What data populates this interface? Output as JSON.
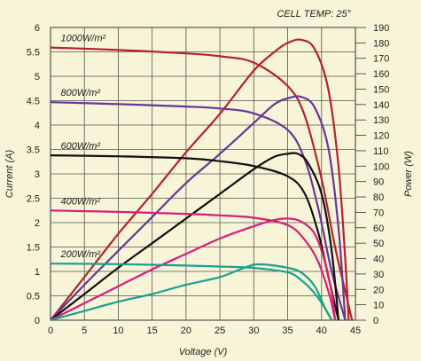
{
  "chart_data": {
    "type": "line",
    "annotation": "CELL TEMP: 25°",
    "xlabel": "Voltage (V)",
    "ylabel_left": "Current (A)",
    "ylabel_right": "Power (W)",
    "xlim": [
      0,
      45
    ],
    "ylim_left": [
      0,
      6
    ],
    "ylim_right": [
      0,
      190
    ],
    "x_ticks": [
      "0",
      "5",
      "10",
      "15",
      "20",
      "25",
      "30",
      "35",
      "40",
      "45"
    ],
    "y_left_ticks": [
      "0",
      "0.5",
      "1",
      "1.5",
      "2",
      "2.5",
      "3",
      "3.5",
      "4",
      "4.5",
      "5",
      "5.5",
      "6"
    ],
    "y_right_ticks": [
      "0",
      "10",
      "20",
      "30",
      "40",
      "50",
      "60",
      "70",
      "80",
      "90",
      "100",
      "110",
      "120",
      "130",
      "140",
      "150",
      "160",
      "170",
      "180",
      "190"
    ],
    "grid": true,
    "series": [
      {
        "name": "1000W/m²",
        "color": "#b5222a",
        "current": [
          [
            0,
            5.59
          ],
          [
            10,
            5.54
          ],
          [
            20,
            5.47
          ],
          [
            25,
            5.41
          ],
          [
            30,
            5.28
          ],
          [
            35,
            4.8
          ],
          [
            37.5,
            4.2
          ],
          [
            40,
            2.9
          ],
          [
            42,
            1.5
          ],
          [
            43.5,
            0.6
          ],
          [
            44.5,
            0
          ]
        ],
        "power": [
          [
            0,
            0
          ],
          [
            5,
            28
          ],
          [
            10,
            56
          ],
          [
            15,
            82
          ],
          [
            20,
            109
          ],
          [
            25,
            134
          ],
          [
            30,
            162
          ],
          [
            33,
            174
          ],
          [
            35,
            180
          ],
          [
            37,
            182
          ],
          [
            39,
            176
          ],
          [
            41,
            150
          ],
          [
            42.5,
            100
          ],
          [
            43.5,
            40
          ],
          [
            44,
            0
          ]
        ]
      },
      {
        "name": "800W/m²",
        "color": "#6a3596",
        "current": [
          [
            0,
            4.47
          ],
          [
            10,
            4.43
          ],
          [
            20,
            4.38
          ],
          [
            25,
            4.34
          ],
          [
            30,
            4.24
          ],
          [
            35,
            3.9
          ],
          [
            37.5,
            3.3
          ],
          [
            39.5,
            2.3
          ],
          [
            41.5,
            1.0
          ],
          [
            43.5,
            0
          ]
        ],
        "power": [
          [
            0,
            0
          ],
          [
            5,
            23
          ],
          [
            10,
            45
          ],
          [
            15,
            67
          ],
          [
            20,
            89
          ],
          [
            25,
            108
          ],
          [
            30,
            128
          ],
          [
            33,
            140
          ],
          [
            35,
            144
          ],
          [
            37,
            145
          ],
          [
            39,
            138
          ],
          [
            41,
            112
          ],
          [
            42.5,
            60
          ],
          [
            43.5,
            0
          ]
        ]
      },
      {
        "name": "600W/m²",
        "color": "#111111",
        "current": [
          [
            0,
            3.38
          ],
          [
            10,
            3.36
          ],
          [
            20,
            3.32
          ],
          [
            25,
            3.26
          ],
          [
            30,
            3.16
          ],
          [
            35,
            2.95
          ],
          [
            37.5,
            2.6
          ],
          [
            39.5,
            1.8
          ],
          [
            41,
            0.9
          ],
          [
            42.5,
            0
          ]
        ],
        "power": [
          [
            0,
            0
          ],
          [
            5,
            17
          ],
          [
            10,
            34
          ],
          [
            15,
            50
          ],
          [
            20,
            66
          ],
          [
            25,
            82
          ],
          [
            30,
            98
          ],
          [
            33,
            106
          ],
          [
            35,
            108
          ],
          [
            36.5,
            108
          ],
          [
            38,
            102
          ],
          [
            40,
            82
          ],
          [
            41.5,
            45
          ],
          [
            42.5,
            0
          ]
        ]
      },
      {
        "name": "400W/m²",
        "color": "#d61f78",
        "current": [
          [
            0,
            2.25
          ],
          [
            10,
            2.22
          ],
          [
            20,
            2.18
          ],
          [
            25,
            2.15
          ],
          [
            30,
            2.1
          ],
          [
            35,
            1.95
          ],
          [
            37.5,
            1.65
          ],
          [
            39.5,
            1.2
          ],
          [
            41.2,
            0.5
          ],
          [
            42,
            0
          ]
        ],
        "power": [
          [
            0,
            0
          ],
          [
            5,
            11
          ],
          [
            10,
            22
          ],
          [
            15,
            33
          ],
          [
            20,
            43
          ],
          [
            25,
            53
          ],
          [
            30,
            61
          ],
          [
            33,
            65
          ],
          [
            35,
            66
          ],
          [
            37,
            64
          ],
          [
            39,
            56
          ],
          [
            40.5,
            38
          ],
          [
            41.5,
            18
          ],
          [
            42,
            0
          ]
        ]
      },
      {
        "name": "200W/m²",
        "color": "#1aa08e",
        "current": [
          [
            0,
            1.16
          ],
          [
            10,
            1.15
          ],
          [
            20,
            1.12
          ],
          [
            25,
            1.1
          ],
          [
            30,
            1.07
          ],
          [
            35,
            0.98
          ],
          [
            37,
            0.82
          ],
          [
            39,
            0.55
          ],
          [
            40.5,
            0.25
          ],
          [
            41.5,
            0
          ]
        ],
        "power": [
          [
            0,
            0
          ],
          [
            5,
            6
          ],
          [
            10,
            12
          ],
          [
            15,
            17
          ],
          [
            20,
            23
          ],
          [
            25,
            28
          ],
          [
            28,
            33
          ],
          [
            30,
            36
          ],
          [
            32,
            36
          ],
          [
            35,
            34
          ],
          [
            37,
            31
          ],
          [
            39,
            22
          ],
          [
            40.5,
            8
          ],
          [
            41.5,
            0
          ]
        ]
      }
    ]
  }
}
